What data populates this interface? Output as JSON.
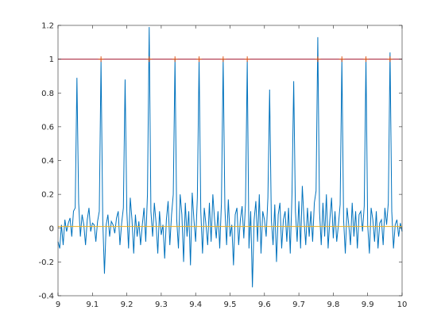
{
  "chart_data": {
    "type": "line",
    "xlim": [
      9,
      10
    ],
    "xticks": [
      9,
      9.1,
      9.2,
      9.3,
      9.4,
      9.5,
      9.6,
      9.7,
      9.8,
      9.9,
      10
    ],
    "ylim": [
      -0.4,
      1.2
    ],
    "yticks": [
      -0.4,
      -0.2,
      0,
      0.2,
      0.4,
      0.6,
      0.8,
      1,
      1.2
    ],
    "series": [
      {
        "color": "#0072BD",
        "x": [
          9,
          9.005,
          9.01,
          9.015,
          9.02,
          9.025,
          9.03,
          9.035,
          9.04,
          9.045,
          9.05,
          9.055,
          9.06,
          9.065,
          9.07,
          9.075,
          9.08,
          9.085,
          9.09,
          9.095,
          9.1,
          9.105,
          9.11,
          9.115,
          9.12,
          9.125,
          9.13,
          9.135,
          9.14,
          9.145,
          9.15,
          9.155,
          9.16,
          9.165,
          9.17,
          9.175,
          9.18,
          9.185,
          9.19,
          9.195,
          9.2,
          9.205,
          9.21,
          9.215,
          9.22,
          9.225,
          9.23,
          9.235,
          9.24,
          9.245,
          9.25,
          9.255,
          9.26,
          9.265,
          9.27,
          9.275,
          9.28,
          9.285,
          9.29,
          9.295,
          9.3,
          9.305,
          9.31,
          9.315,
          9.32,
          9.325,
          9.33,
          9.335,
          9.34,
          9.345,
          9.35,
          9.355,
          9.36,
          9.365,
          9.37,
          9.375,
          9.38,
          9.385,
          9.39,
          9.395,
          9.4,
          9.405,
          9.41,
          9.415,
          9.42,
          9.425,
          9.43,
          9.435,
          9.44,
          9.445,
          9.45,
          9.455,
          9.46,
          9.465,
          9.47,
          9.475,
          9.48,
          9.485,
          9.49,
          9.495,
          9.5,
          9.505,
          9.51,
          9.515,
          9.52,
          9.525,
          9.53,
          9.535,
          9.54,
          9.545,
          9.55,
          9.555,
          9.56,
          9.565,
          9.57,
          9.575,
          9.58,
          9.585,
          9.59,
          9.595,
          9.6,
          9.605,
          9.61,
          9.615,
          9.62,
          9.625,
          9.63,
          9.635,
          9.64,
          9.645,
          9.65,
          9.655,
          9.66,
          9.665,
          9.67,
          9.675,
          9.68,
          9.685,
          9.69,
          9.695,
          9.7,
          9.705,
          9.71,
          9.715,
          9.72,
          9.725,
          9.73,
          9.735,
          9.74,
          9.745,
          9.75,
          9.755,
          9.76,
          9.765,
          9.77,
          9.775,
          9.78,
          9.785,
          9.79,
          9.795,
          9.8,
          9.805,
          9.81,
          9.815,
          9.82,
          9.825,
          9.83,
          9.835,
          9.84,
          9.845,
          9.85,
          9.855,
          9.86,
          9.865,
          9.87,
          9.875,
          9.88,
          9.885,
          9.89,
          9.895,
          9.9,
          9.905,
          9.91,
          9.915,
          9.92,
          9.925,
          9.93,
          9.935,
          9.94,
          9.945,
          9.95,
          9.955,
          9.96,
          9.965,
          9.97,
          9.975,
          9.98,
          9.985,
          9.99,
          9.995,
          10
        ],
        "values": [
          -0.08,
          -0.12,
          0.02,
          -0.1,
          0.05,
          -0.02,
          0.03,
          0.06,
          -0.05,
          0.1,
          0.12,
          0.89,
          0.15,
          -0.05,
          0.08,
          0.02,
          -0.1,
          0.05,
          0.12,
          -0.02,
          0.03,
          0.02,
          -0.08,
          0.04,
          0.1,
          0.99,
          0.05,
          -0.27,
          0.02,
          0.08,
          -0.05,
          0.04,
          0.02,
          -0.03,
          0.06,
          0.1,
          -0.1,
          0.03,
          0.12,
          0.88,
          0.1,
          -0.12,
          0.18,
          0.05,
          -0.15,
          0.08,
          -0.05,
          0.04,
          -0.1,
          0.02,
          0.12,
          -0.08,
          0.2,
          1.19,
          0.1,
          -0.05,
          0.15,
          0.03,
          -0.15,
          0.1,
          -0.04,
          0.02,
          -0.18,
          0.05,
          0.16,
          -0.1,
          0.08,
          0.2,
          1.0,
          0.05,
          -0.12,
          0.2,
          0.08,
          -0.2,
          0.15,
          -0.05,
          0.1,
          -0.22,
          0.21,
          0.05,
          -0.08,
          0.18,
          1.0,
          0.1,
          -0.15,
          0.12,
          0.02,
          -0.1,
          0.15,
          -0.08,
          0.2,
          0.05,
          -0.06,
          0.1,
          -0.12,
          0.15,
          1.0,
          0.12,
          -0.1,
          0.17,
          -0.05,
          0.02,
          -0.22,
          0.08,
          0.12,
          -0.1,
          0.05,
          0.13,
          -0.06,
          0.15,
          0.99,
          -0.12,
          0.1,
          -0.35,
          0.05,
          0.16,
          -0.08,
          0.2,
          -0.15,
          0.1,
          0.05,
          -0.05,
          0.18,
          0.82,
          0.05,
          -0.1,
          0.14,
          -0.2,
          0.08,
          0.15,
          -0.12,
          0.05,
          0.1,
          -0.08,
          0.12,
          -0.15,
          0.2,
          0.87,
          0.1,
          -0.08,
          0.16,
          -0.12,
          0.25,
          0.05,
          -0.1,
          0.12,
          -0.05,
          0.1,
          -0.08,
          0.15,
          0.22,
          1.13,
          0.1,
          -0.1,
          0.15,
          -0.05,
          0.2,
          -0.12,
          0.05,
          0.18,
          -0.06,
          0.1,
          -0.08,
          0.02,
          0.14,
          1.0,
          0.05,
          -0.15,
          0.12,
          0.02,
          -0.1,
          0.15,
          -0.05,
          0.1,
          -0.12,
          0.08,
          0.1,
          -0.02,
          0.13,
          1.0,
          0.02,
          -0.15,
          0.12,
          0.05,
          -0.08,
          0.1,
          -0.12,
          0.03,
          0.05,
          -0.1,
          0.12,
          0.02,
          0.15,
          1.04,
          0.1,
          -0.12,
          0.02,
          0.05,
          -0.05,
          0.03,
          -0.02
        ]
      },
      {
        "color": "#A2142F",
        "x": [
          9,
          10
        ],
        "values": [
          1,
          1
        ]
      },
      {
        "color": "#EDB120",
        "x": [
          9,
          10
        ],
        "values": [
          0.01,
          0.01
        ]
      },
      {
        "color": "#D95319",
        "marker": "+",
        "line": false,
        "x": [
          9.125,
          9.265,
          9.34,
          9.41,
          9.48,
          9.55,
          9.755,
          9.825,
          9.895,
          9.965
        ],
        "values": [
          1,
          1,
          1,
          1,
          1,
          1,
          1,
          1,
          1,
          1
        ]
      }
    ]
  }
}
